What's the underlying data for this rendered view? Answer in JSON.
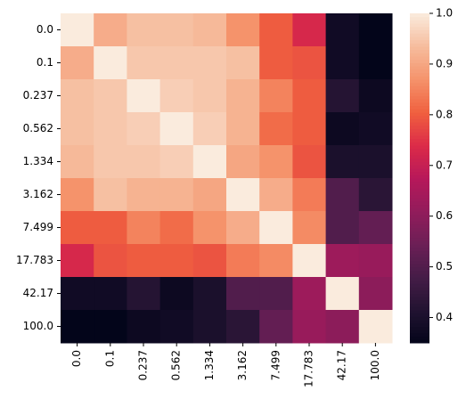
{
  "chart_data": {
    "type": "heatmap",
    "x": [
      "0.0",
      "0.1",
      "0.237",
      "0.562",
      "1.334",
      "3.162",
      "7.499",
      "17.783",
      "42.17",
      "100.0"
    ],
    "y": [
      "0.0",
      "0.1",
      "0.237",
      "0.562",
      "1.334",
      "3.162",
      "7.499",
      "17.783",
      "42.17",
      "100.0"
    ],
    "values": [
      [
        1.0,
        0.91,
        0.94,
        0.94,
        0.93,
        0.87,
        0.8,
        0.73,
        0.38,
        0.35
      ],
      [
        0.91,
        1.0,
        0.95,
        0.95,
        0.95,
        0.94,
        0.8,
        0.79,
        0.38,
        0.35
      ],
      [
        0.94,
        0.95,
        1.0,
        0.96,
        0.95,
        0.92,
        0.85,
        0.8,
        0.42,
        0.37
      ],
      [
        0.94,
        0.95,
        0.96,
        1.0,
        0.96,
        0.92,
        0.82,
        0.8,
        0.37,
        0.38
      ],
      [
        0.93,
        0.95,
        0.95,
        0.96,
        1.0,
        0.9,
        0.87,
        0.79,
        0.4,
        0.4
      ],
      [
        0.87,
        0.94,
        0.92,
        0.92,
        0.9,
        1.0,
        0.91,
        0.84,
        0.5,
        0.43
      ],
      [
        0.8,
        0.8,
        0.85,
        0.82,
        0.87,
        0.91,
        1.0,
        0.86,
        0.5,
        0.53
      ],
      [
        0.73,
        0.79,
        0.8,
        0.8,
        0.79,
        0.84,
        0.86,
        1.0,
        0.63,
        0.62
      ],
      [
        0.38,
        0.38,
        0.42,
        0.37,
        0.4,
        0.5,
        0.5,
        0.63,
        1.0,
        0.6
      ],
      [
        0.35,
        0.35,
        0.37,
        0.38,
        0.4,
        0.43,
        0.53,
        0.62,
        0.6,
        1.0
      ]
    ],
    "colormap": "rocket",
    "clim": [
      0.35,
      1.0
    ],
    "cticks": [
      0.4,
      0.5,
      0.6,
      0.7,
      0.8,
      0.9,
      {
        "value": 1.0,
        "label": "1.0"
      }
    ]
  }
}
